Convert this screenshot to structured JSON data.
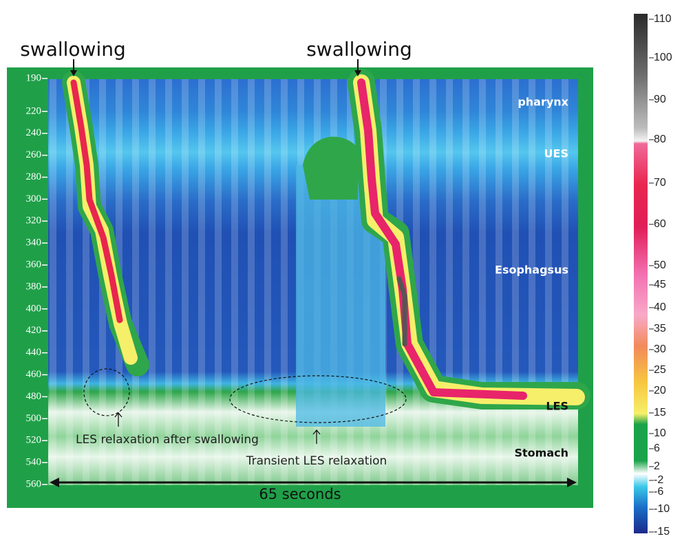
{
  "chart_data": {
    "type": "heatmap",
    "annotations": [
      "swallowing",
      "swallowing",
      "pharynx",
      "UES",
      "Esophagsus",
      "LES",
      "Stomach",
      "LES relaxation after swallowing",
      "Transient LES relaxation"
    ],
    "x_label": "65 seconds",
    "ylim": [
      190,
      560
    ],
    "y_inverted": true,
    "yticks": [
      190,
      220,
      240,
      260,
      280,
      300,
      320,
      340,
      360,
      380,
      400,
      420,
      440,
      460,
      480,
      500,
      520,
      540,
      560
    ],
    "colorbar_ticks": [
      110,
      100,
      90,
      80,
      70,
      60,
      50,
      45,
      40,
      35,
      30,
      25,
      20,
      15,
      10,
      6,
      2,
      -2,
      -6,
      -10,
      -15
    ]
  }
}
